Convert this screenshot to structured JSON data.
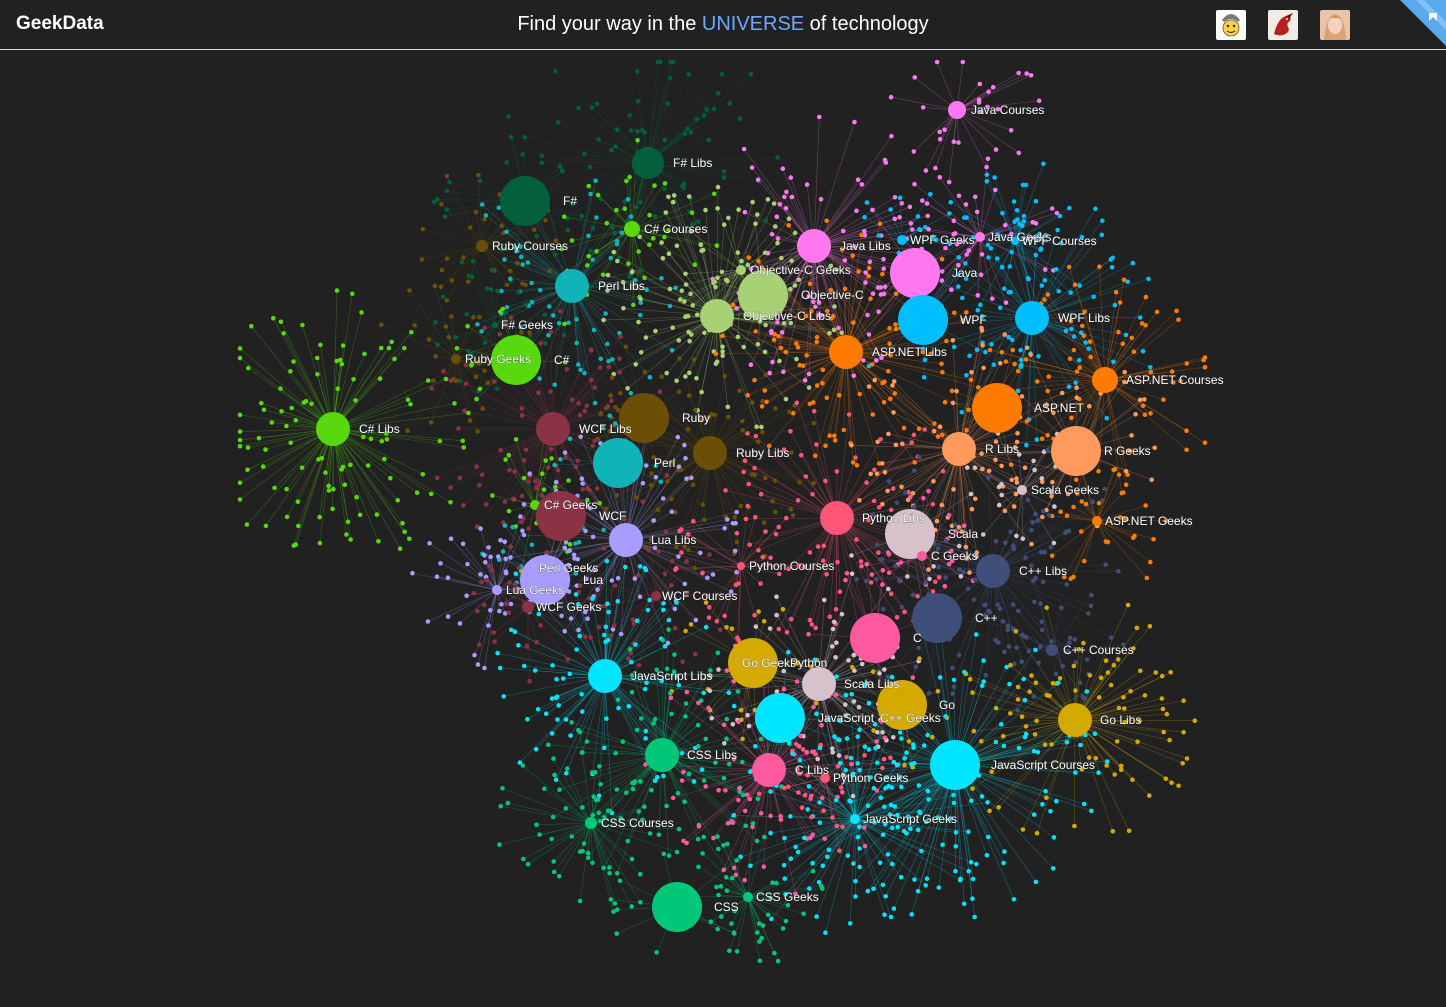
{
  "header": {
    "brand": "GeekData",
    "tagline_prefix": "Find your way in the ",
    "tagline_accent": "UNIVERSE",
    "tagline_suffix": " of technology",
    "accent_color": "#6fa8ff",
    "avatars": [
      "smiley-avatar",
      "dragon-avatar",
      "portrait-avatar"
    ],
    "corner_icon": "ribbon-icon"
  },
  "graph": {
    "background": "#212121",
    "nodes": [
      {
        "label": "Java Courses",
        "color": "#ff78f0"
      },
      {
        "label": "F# Libs",
        "color": "#04603c"
      },
      {
        "label": "F#",
        "color": "#04603c"
      },
      {
        "label": "C# Courses",
        "color": "#57d90d"
      },
      {
        "label": "Ruby Courses",
        "color": "#6b4f06"
      },
      {
        "label": "Java Libs",
        "color": "#ff78f0"
      },
      {
        "label": "WPF Geeks",
        "color": "#00bfff"
      },
      {
        "label": "Java Geeks",
        "color": "#ff78f0"
      },
      {
        "label": "WPF Courses",
        "color": "#00bfff"
      },
      {
        "label": "Objective-C Geeks",
        "color": "#a7d174"
      },
      {
        "label": "Java",
        "color": "#ff78f0"
      },
      {
        "label": "Perl Libs",
        "color": "#10b3b8"
      },
      {
        "label": "Objective-C",
        "color": "#a7d174"
      },
      {
        "label": "Objective-C Libs",
        "color": "#a7d174"
      },
      {
        "label": "WPF",
        "color": "#00bfff"
      },
      {
        "label": "WPF Libs",
        "color": "#00bfff"
      },
      {
        "label": "F# Geeks",
        "color": "#04603c"
      },
      {
        "label": "ASP.NET Libs",
        "color": "#ff7b00"
      },
      {
        "label": "Ruby Geeks",
        "color": "#6b4f06"
      },
      {
        "label": "C#",
        "color": "#57d90d"
      },
      {
        "label": "ASP.NET Courses",
        "color": "#ff7b00"
      },
      {
        "label": "ASP.NET",
        "color": "#ff7b00"
      },
      {
        "label": "Ruby",
        "color": "#6b4f06"
      },
      {
        "label": "C# Libs",
        "color": "#57d90d"
      },
      {
        "label": "WCF Libs",
        "color": "#8b3344"
      },
      {
        "label": "R Libs",
        "color": "#ff9a5c"
      },
      {
        "label": "R Geeks",
        "color": "#ff9a5c"
      },
      {
        "label": "Ruby Libs",
        "color": "#6b4f06"
      },
      {
        "label": "Perl",
        "color": "#10b3b8"
      },
      {
        "label": "Scala Geeks",
        "color": "#d7c1cb"
      },
      {
        "label": "C# Geeks",
        "color": "#57d90d"
      },
      {
        "label": "WCF",
        "color": "#8b3344"
      },
      {
        "label": "Python Libs",
        "color": "#ff5577"
      },
      {
        "label": "ASP.NET Geeks",
        "color": "#ff7b00"
      },
      {
        "label": "Lua Libs",
        "color": "#a99cff"
      },
      {
        "label": "Scala",
        "color": "#d7c1cb"
      },
      {
        "label": "C Geeks",
        "color": "#ff5aa0"
      },
      {
        "label": "Python Courses",
        "color": "#ff5577"
      },
      {
        "label": "Perl Geeks",
        "color": "#10b3b8"
      },
      {
        "label": "C++ Libs",
        "color": "#3f4f7a"
      },
      {
        "label": "Lua",
        "color": "#a99cff"
      },
      {
        "label": "Lua Geeks",
        "color": "#a99cff"
      },
      {
        "label": "WCF Courses",
        "color": "#8b3344"
      },
      {
        "label": "WCF Geeks",
        "color": "#8b3344"
      },
      {
        "label": "C++",
        "color": "#3f4f7a"
      },
      {
        "label": "C",
        "color": "#ff5aa0"
      },
      {
        "label": "C++ Courses",
        "color": "#3f4f7a"
      },
      {
        "label": "Go Geeks",
        "color": "#d4aa00"
      },
      {
        "label": "Python",
        "color": "#ff5577"
      },
      {
        "label": "JavaScript Libs",
        "color": "#00e5ff"
      },
      {
        "label": "Scala Libs",
        "color": "#d7c1cb"
      },
      {
        "label": "Go",
        "color": "#d4aa00"
      },
      {
        "label": "JavaScript",
        "color": "#00e5ff"
      },
      {
        "label": "C++ Geeks",
        "color": "#3f4f7a"
      },
      {
        "label": "Go Libs",
        "color": "#d4aa00"
      },
      {
        "label": "CSS Libs",
        "color": "#00c878"
      },
      {
        "label": "C Libs",
        "color": "#ff5aa0"
      },
      {
        "label": "JavaScript Courses",
        "color": "#00e5ff"
      },
      {
        "label": "Python Geeks",
        "color": "#ff5577"
      },
      {
        "label": "CSS Courses",
        "color": "#00c878"
      },
      {
        "label": "JavaScript Geeks",
        "color": "#00e5ff"
      },
      {
        "label": "CSS",
        "color": "#00c878"
      },
      {
        "label": "CSS Geeks",
        "color": "#00c878"
      }
    ]
  }
}
